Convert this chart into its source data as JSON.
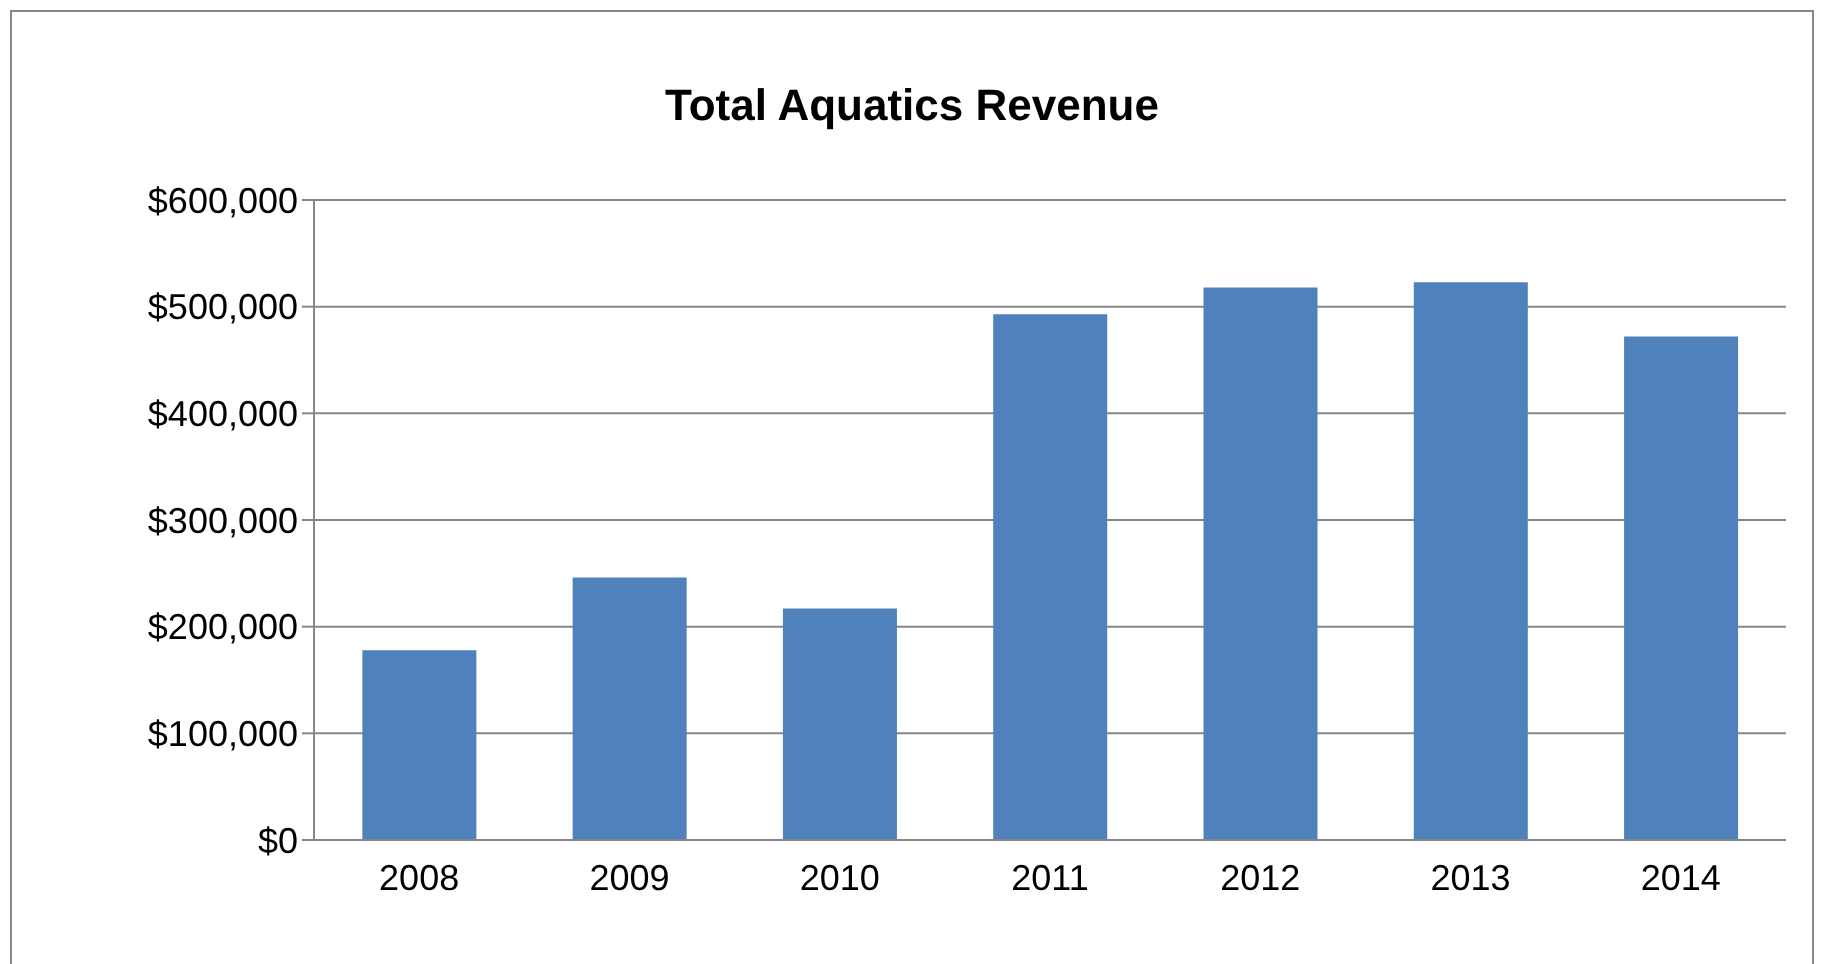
{
  "chart_data": {
    "type": "bar",
    "title": "Total Aquatics Revenue",
    "categories": [
      "2008",
      "2009",
      "2010",
      "2011",
      "2012",
      "2013",
      "2014"
    ],
    "values": [
      178000,
      246000,
      217000,
      493000,
      518000,
      523000,
      472000
    ],
    "color": "#4f81bd",
    "ylim": [
      0,
      600000
    ],
    "yticks": [
      {
        "value": 0,
        "label": "$0"
      },
      {
        "value": 100000,
        "label": "$100,000"
      },
      {
        "value": 200000,
        "label": "$200,000"
      },
      {
        "value": 300000,
        "label": "$300,000"
      },
      {
        "value": 400000,
        "label": "$400,000"
      },
      {
        "value": 500000,
        "label": "$500,000"
      },
      {
        "value": 600000,
        "label": "$600,000"
      }
    ],
    "grid": "y"
  }
}
